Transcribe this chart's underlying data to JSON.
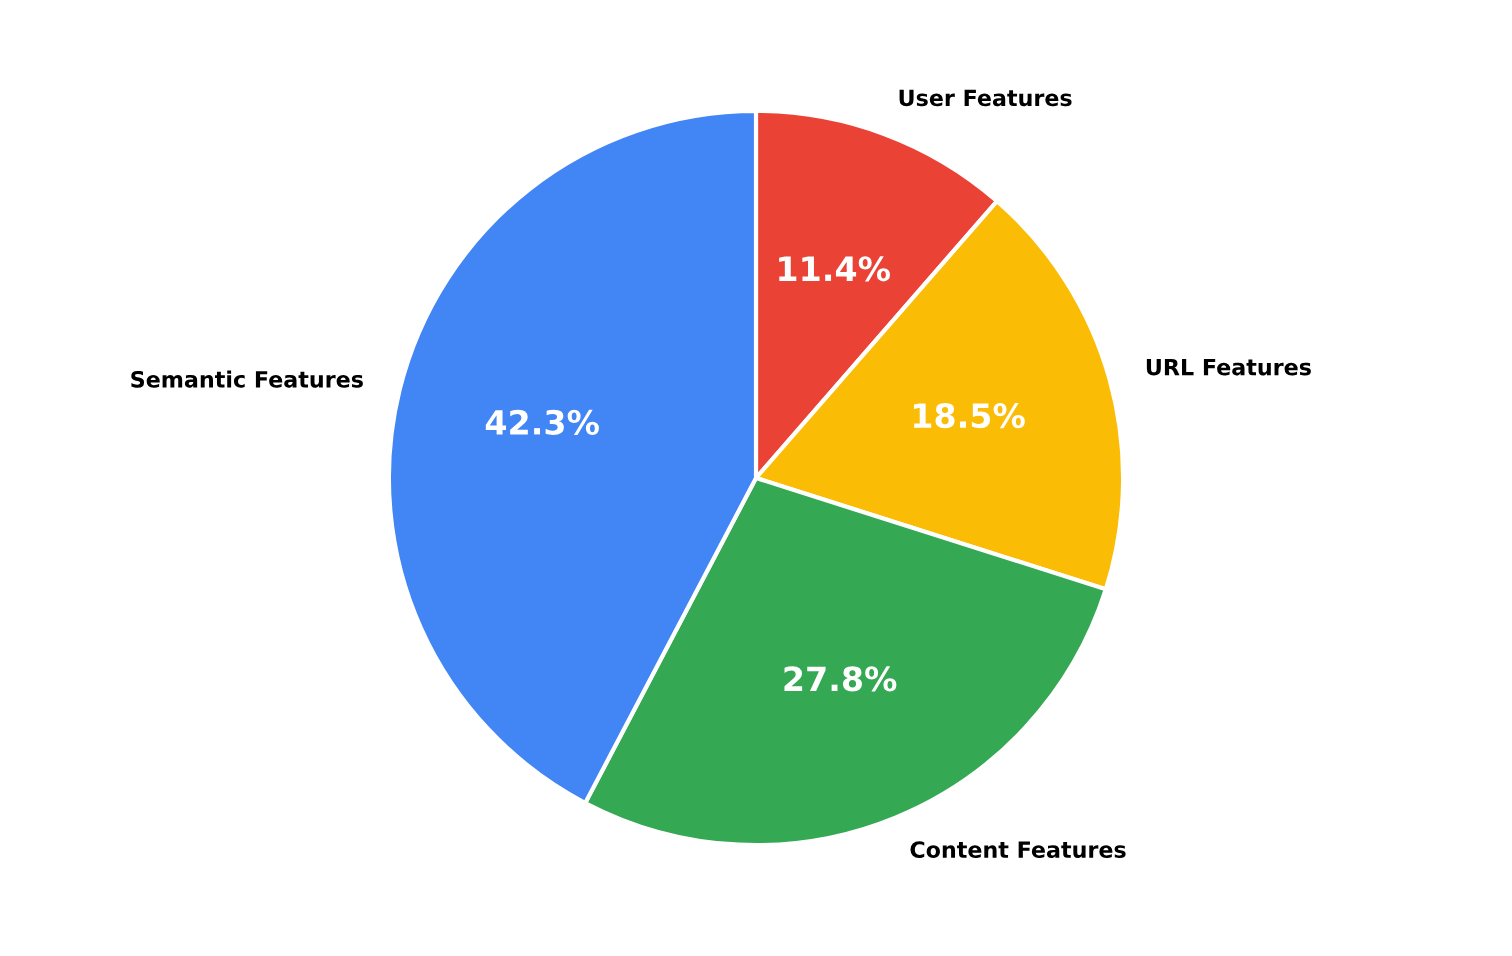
{
  "chart_data": {
    "type": "pie",
    "categories": [
      "User Features",
      "URL Features",
      "Content Features",
      "Semantic Features"
    ],
    "values": [
      11.4,
      18.5,
      27.8,
      42.3
    ],
    "colors": [
      "#ea4335",
      "#fbbc05",
      "#34a853",
      "#4285f4"
    ],
    "value_labels": [
      "11.4%",
      "18.5%",
      "27.8%",
      "42.3%"
    ]
  }
}
